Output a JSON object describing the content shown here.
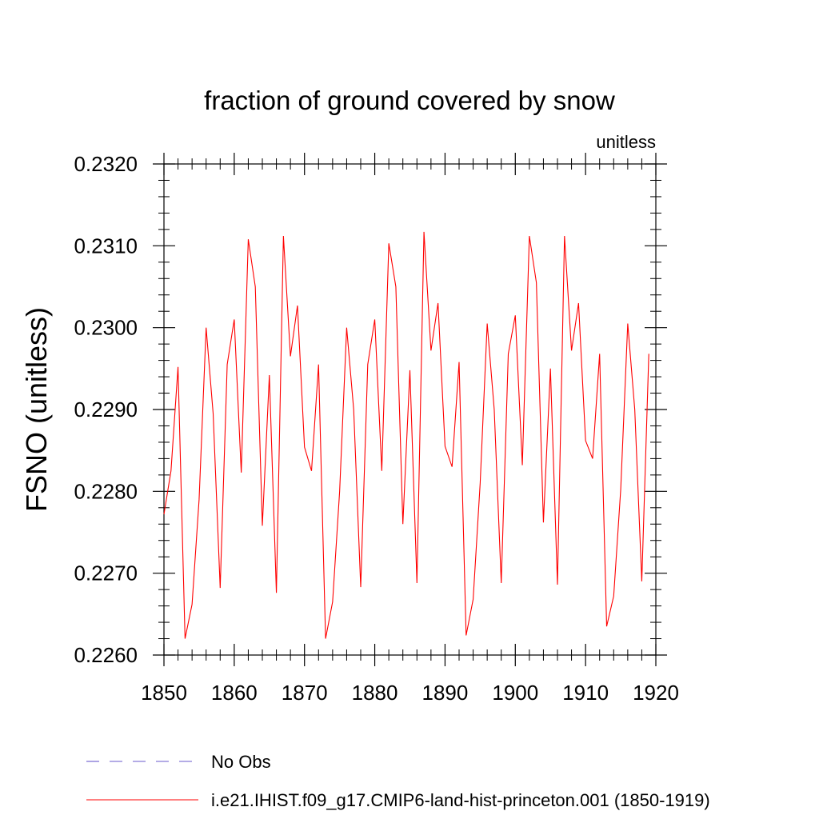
{
  "chart_data": {
    "type": "line",
    "title": "fraction of ground covered by snow",
    "units_label": "unitless",
    "ylabel": "FSNO  (unitless)",
    "xlabel": "",
    "xlim": [
      1850,
      1920
    ],
    "ylim": [
      0.226,
      0.232
    ],
    "xticks": [
      1850,
      1860,
      1870,
      1880,
      1890,
      1900,
      1910,
      1920
    ],
    "xtick_labels": [
      "1850",
      "1860",
      "1870",
      "1880",
      "1890",
      "1900",
      "1910",
      "1920"
    ],
    "yticks": [
      0.226,
      0.227,
      0.228,
      0.229,
      0.23,
      0.231,
      0.232
    ],
    "ytick_labels": [
      "0.2260",
      "0.2270",
      "0.2280",
      "0.2290",
      "0.2300",
      "0.2310",
      "0.2320"
    ],
    "grid": false,
    "legend_position": "bottom",
    "legend": [
      {
        "label": "No Obs",
        "color": "#6a5acd",
        "style": "dashed"
      },
      {
        "label": "i.e21.IHIST.f09_g17.CMIP6-land-hist-princeton.001 (1850-1919)",
        "color": "#ff0000",
        "style": "solid"
      }
    ],
    "series": [
      {
        "name": "i.e21.IHIST.f09_g17.CMIP6-land-hist-princeton.001 (1850-1919)",
        "color": "#ff0000",
        "x": [
          1850,
          1851,
          1852,
          1853,
          1854,
          1855,
          1856,
          1857,
          1858,
          1859,
          1860,
          1861,
          1862,
          1863,
          1864,
          1865,
          1866,
          1867,
          1868,
          1869,
          1870,
          1871,
          1872,
          1873,
          1874,
          1875,
          1876,
          1877,
          1878,
          1879,
          1880,
          1881,
          1882,
          1883,
          1884,
          1885,
          1886,
          1887,
          1888,
          1889,
          1890,
          1891,
          1892,
          1893,
          1894,
          1895,
          1896,
          1897,
          1898,
          1899,
          1900,
          1901,
          1902,
          1903,
          1904,
          1905,
          1906,
          1907,
          1908,
          1909,
          1910,
          1911,
          1912,
          1913,
          1914,
          1915,
          1916,
          1917,
          1918,
          1919
        ],
        "y": [
          0.22772,
          0.22825,
          0.22952,
          0.2262,
          0.22662,
          0.2279,
          0.23,
          0.22895,
          0.22682,
          0.22955,
          0.2301,
          0.22823,
          0.23108,
          0.2305,
          0.22758,
          0.22942,
          0.22676,
          0.23112,
          0.22965,
          0.23027,
          0.22854,
          0.22825,
          0.22955,
          0.2262,
          0.22665,
          0.228,
          0.23,
          0.229,
          0.22683,
          0.22955,
          0.2301,
          0.22825,
          0.23103,
          0.2305,
          0.2276,
          0.22948,
          0.22688,
          0.23117,
          0.22972,
          0.2303,
          0.22855,
          0.2283,
          0.22958,
          0.22624,
          0.22668,
          0.2281,
          0.23005,
          0.229,
          0.22688,
          0.22968,
          0.23015,
          0.22832,
          0.23112,
          0.23055,
          0.22762,
          0.2295,
          0.22686,
          0.23112,
          0.22972,
          0.2303,
          0.22862,
          0.2284,
          0.22968,
          0.22635,
          0.22672,
          0.22802,
          0.23005,
          0.229,
          0.2269,
          0.22968
        ]
      }
    ]
  }
}
